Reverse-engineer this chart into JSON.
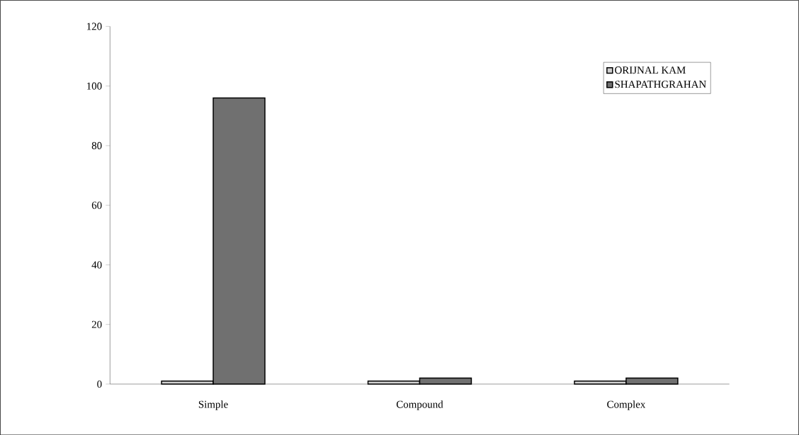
{
  "chart_data": {
    "type": "bar",
    "categories": [
      "Simple",
      "Compound",
      "Complex"
    ],
    "series": [
      {
        "name": "ORIJNAL KAM",
        "color": "#d0d0d0",
        "values": [
          1,
          1,
          1
        ]
      },
      {
        "name": "SHAPATHGRAHAN",
        "color": "#707070",
        "values": [
          96,
          2,
          2
        ]
      }
    ],
    "ylim": [
      0,
      120
    ],
    "yticks": [
      0,
      20,
      40,
      60,
      80,
      100,
      120
    ],
    "grid": false,
    "legend": "top right"
  }
}
